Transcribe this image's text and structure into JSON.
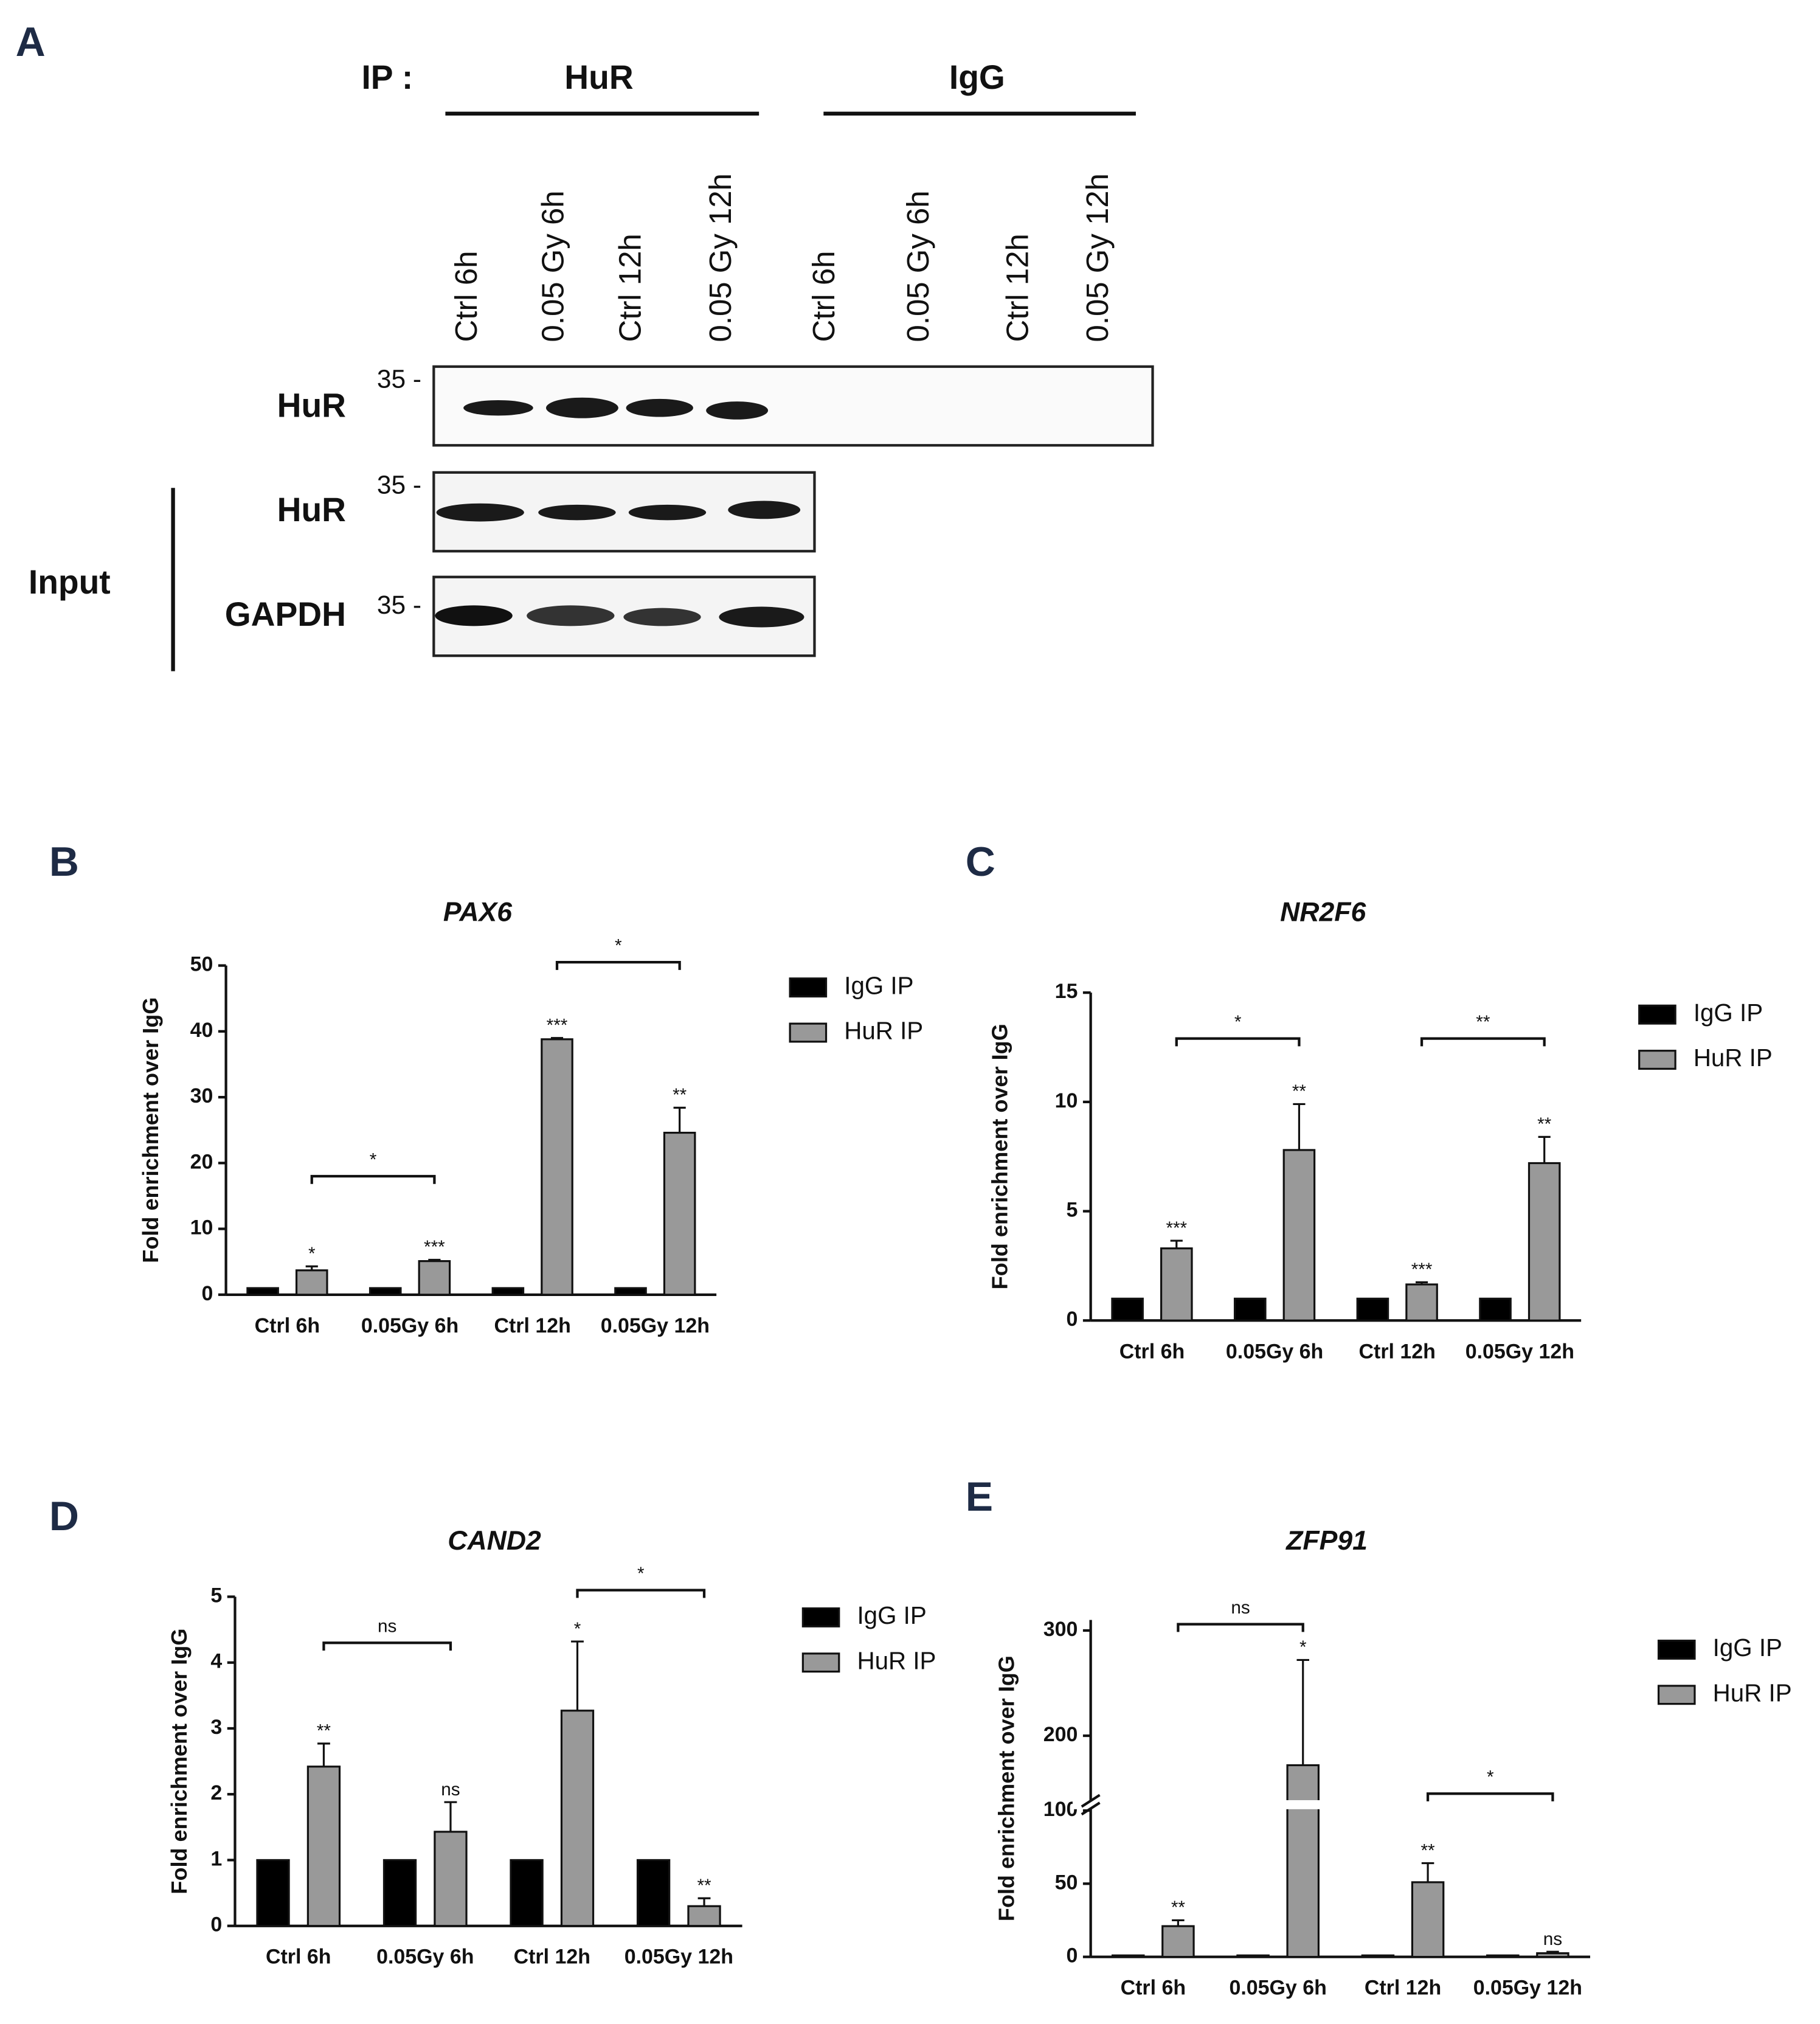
{
  "panel_a": {
    "label": "A",
    "ip_label": "IP :",
    "groups": [
      "HuR",
      "IgG"
    ],
    "lanes": [
      "Ctrl 6h",
      "0.05 Gy 6h",
      "Ctrl 12h",
      "0.05 Gy 12h",
      "Ctrl 6h",
      "0.05 Gy 6h",
      "Ctrl 12h",
      "0.05 Gy 12h"
    ],
    "blots": [
      {
        "label": "HuR",
        "marker": "35 -"
      },
      {
        "label": "HuR",
        "marker": "35 -"
      },
      {
        "label": "GAPDH",
        "marker": "35 -"
      }
    ],
    "input_label": "Input"
  },
  "chart_data": [
    {
      "type": "bar",
      "label": "B",
      "title": "PAX6",
      "y_label": "Fold enrichment over IgG",
      "categories": [
        "Ctrl 6h",
        "0.05Gy 6h",
        "Ctrl 12h",
        "0.05Gy 12h"
      ],
      "series": [
        {
          "name": "IgG IP",
          "color": "#000000",
          "values": [
            1,
            1,
            1,
            1
          ]
        },
        {
          "name": "HuR IP",
          "color": "#999999",
          "values": [
            3.7,
            5.1,
            38.8,
            24.6
          ],
          "errors": [
            0.6,
            0.2,
            0.2,
            3.8
          ]
        }
      ],
      "annotations": [
        "*",
        "***",
        "***",
        "**"
      ],
      "brackets": [
        {
          "from": 0,
          "to": 1,
          "y": 18,
          "label": "*"
        },
        {
          "from": 2,
          "to": 3,
          "y": 50.5,
          "label": "*"
        }
      ],
      "ylim": [
        0,
        50
      ],
      "yticks": [
        0,
        10,
        20,
        30,
        40,
        50
      ]
    },
    {
      "type": "bar",
      "label": "C",
      "title": "NR2F6",
      "y_label": "Fold enrichment over IgG",
      "categories": [
        "Ctrl 6h",
        "0.05Gy 6h",
        "Ctrl 12h",
        "0.05Gy 12h"
      ],
      "series": [
        {
          "name": "IgG IP",
          "color": "#000000",
          "values": [
            1,
            1,
            1,
            1
          ]
        },
        {
          "name": "HuR IP",
          "color": "#999999",
          "values": [
            3.3,
            7.8,
            1.65,
            7.2
          ],
          "errors": [
            0.35,
            2.1,
            0.1,
            1.2
          ]
        }
      ],
      "annotations": [
        "***",
        "**",
        "***",
        "**"
      ],
      "brackets": [
        {
          "from": 0,
          "to": 1,
          "y": 12.9,
          "label": "*"
        },
        {
          "from": 2,
          "to": 3,
          "y": 12.9,
          "label": "**"
        }
      ],
      "ylim": [
        0,
        15
      ],
      "yticks": [
        0,
        5,
        10,
        15
      ]
    },
    {
      "type": "bar",
      "label": "D",
      "title": "CAND2",
      "y_label": "Fold enrichment over IgG",
      "categories": [
        "Ctrl 6h",
        "0.05Gy 6h",
        "Ctrl 12h",
        "0.05Gy 12h"
      ],
      "series": [
        {
          "name": "IgG IP",
          "color": "#000000",
          "values": [
            1,
            1,
            1,
            1
          ]
        },
        {
          "name": "HuR IP",
          "color": "#999999",
          "values": [
            2.42,
            1.43,
            3.27,
            0.3
          ],
          "errors": [
            0.35,
            0.45,
            1.05,
            0.12
          ]
        }
      ],
      "annotations": [
        "**",
        "ns",
        "*",
        "**"
      ],
      "brackets": [
        {
          "from": 0,
          "to": 1,
          "y": 4.3,
          "label": "ns"
        },
        {
          "from": 2,
          "to": 3,
          "y": 5.1,
          "label": "*"
        }
      ],
      "ylim": [
        0,
        5
      ],
      "yticks": [
        0,
        1,
        2,
        3,
        4,
        5
      ]
    },
    {
      "type": "bar",
      "label": "E",
      "title": "ZFP91",
      "y_label": "Fold enrichment over IgG",
      "categories": [
        "Ctrl 6h",
        "0.05Gy 6h",
        "Ctrl 12h",
        "0.05Gy 12h"
      ],
      "series": [
        {
          "name": "IgG IP",
          "color": "#000000",
          "values": [
            1,
            1,
            1,
            1
          ]
        },
        {
          "name": "HuR IP",
          "color": "#999999",
          "values": [
            21,
            172,
            51,
            2.5
          ],
          "errors": [
            4,
            100,
            13,
            1
          ]
        }
      ],
      "annotations": [
        "**",
        "*",
        "**",
        "ns"
      ],
      "brackets": [
        {
          "from": 0,
          "to": 1,
          "y": 306,
          "label": "ns"
        },
        {
          "from": 2,
          "to": 3,
          "y": 145,
          "label": "*"
        }
      ],
      "ylim": [
        0,
        310
      ],
      "axis_break": [
        100,
        140
      ],
      "yticks": [
        0,
        50,
        100,
        200,
        300
      ]
    }
  ]
}
